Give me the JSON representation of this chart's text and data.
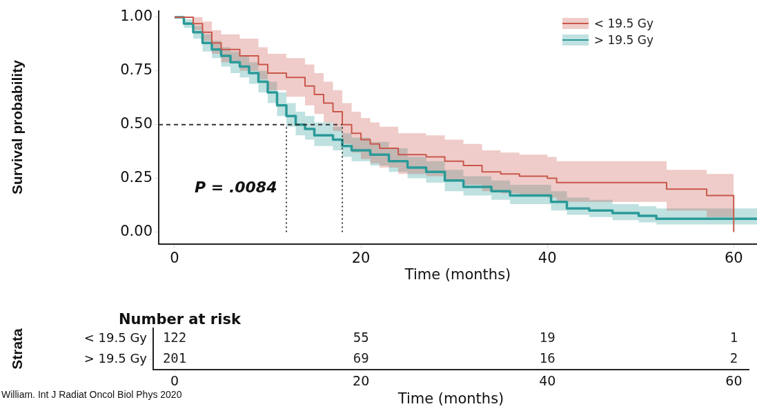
{
  "chart_data": [
    {
      "type": "step",
      "xlabel": "Time (months)",
      "ylabel": "Survival probability",
      "xlim": [
        -1.7,
        62.5
      ],
      "ylim": [
        -0.055,
        1.03
      ],
      "xticks": [
        0,
        20,
        40,
        60
      ],
      "yticks": [
        {
          "value": 0,
          "label": "0.00"
        },
        {
          "value": 0.25,
          "label": "0.25"
        },
        {
          "value": 0.5,
          "label": "0.50"
        },
        {
          "value": 0.75,
          "label": "0.75"
        },
        {
          "value": 1,
          "label": "1.00"
        }
      ],
      "grid": false,
      "legend": "top right",
      "line_style": "solid",
      "series": [
        {
          "name": "< 19.5 Gy",
          "color": "#c9574b",
          "x": [
            0,
            2,
            3,
            4,
            5,
            7,
            9,
            10,
            12,
            14,
            15,
            16,
            17,
            18,
            19,
            20,
            21,
            22,
            24,
            27,
            29,
            31,
            33,
            35,
            37,
            40,
            41,
            52.8,
            57.1,
            60
          ],
          "values": [
            1,
            0.97,
            0.93,
            0.88,
            0.85,
            0.82,
            0.78,
            0.74,
            0.72,
            0.68,
            0.64,
            0.6,
            0.56,
            0.5,
            0.46,
            0.43,
            0.41,
            0.39,
            0.36,
            0.35,
            0.33,
            0.31,
            0.28,
            0.27,
            0.26,
            0.25,
            0.23,
            0.2,
            0.17,
            0
          ],
          "lower": [
            1,
            0.94,
            0.89,
            0.83,
            0.79,
            0.75,
            0.71,
            0.66,
            0.63,
            0.59,
            0.55,
            0.51,
            0.47,
            0.41,
            0.37,
            0.34,
            0.32,
            0.3,
            0.27,
            0.26,
            0.24,
            0.22,
            0.19,
            0.18,
            0.17,
            0.16,
            0.14,
            0.1,
            0.07,
            0.07
          ],
          "upper": [
            1,
            1,
            0.98,
            0.94,
            0.92,
            0.9,
            0.86,
            0.83,
            0.81,
            0.78,
            0.74,
            0.7,
            0.66,
            0.6,
            0.56,
            0.53,
            0.51,
            0.49,
            0.46,
            0.45,
            0.43,
            0.41,
            0.38,
            0.37,
            0.36,
            0.35,
            0.33,
            0.29,
            0.27,
            0.27
          ]
        },
        {
          "name": "> 19.5 Gy",
          "color": "#2a9a98",
          "x": [
            0,
            1,
            2,
            3,
            4,
            5,
            6,
            7,
            8,
            9,
            10,
            11,
            12,
            13,
            14,
            15,
            17,
            18,
            19,
            21,
            23,
            25,
            27,
            29,
            31,
            34,
            36,
            40.4,
            42.1,
            44.5,
            47,
            49.8,
            51.7,
            62.5
          ],
          "values": [
            1,
            0.97,
            0.93,
            0.88,
            0.85,
            0.82,
            0.79,
            0.77,
            0.74,
            0.7,
            0.65,
            0.59,
            0.54,
            0.5,
            0.48,
            0.45,
            0.43,
            0.4,
            0.38,
            0.36,
            0.33,
            0.3,
            0.28,
            0.24,
            0.21,
            0.19,
            0.17,
            0.14,
            0.11,
            0.1,
            0.088,
            0.075,
            0.062,
            0.062
          ],
          "lower": [
            1,
            0.95,
            0.9,
            0.84,
            0.81,
            0.77,
            0.74,
            0.72,
            0.69,
            0.65,
            0.6,
            0.54,
            0.49,
            0.45,
            0.43,
            0.4,
            0.38,
            0.35,
            0.33,
            0.31,
            0.28,
            0.25,
            0.23,
            0.19,
            0.17,
            0.15,
            0.13,
            0.1,
            0.08,
            0.07,
            0.055,
            0.045,
            0.035,
            0.035
          ],
          "upper": [
            1,
            0.99,
            0.96,
            0.92,
            0.89,
            0.86,
            0.84,
            0.82,
            0.79,
            0.75,
            0.7,
            0.65,
            0.6,
            0.56,
            0.54,
            0.51,
            0.49,
            0.46,
            0.44,
            0.42,
            0.39,
            0.35,
            0.33,
            0.29,
            0.26,
            0.24,
            0.22,
            0.19,
            0.16,
            0.15,
            0.13,
            0.12,
            0.11,
            0.11
          ]
        }
      ],
      "ref_lines": [
        {
          "axis": "y",
          "value": 0.5,
          "line_style": "dashed"
        },
        {
          "axis": "x",
          "value": 12,
          "line_style": "dotted"
        },
        {
          "axis": "x",
          "value": 18,
          "line_style": "dotted"
        }
      ],
      "annotations": [
        "P = .0084"
      ]
    },
    {
      "type": "heatmap",
      "title": "Number at risk",
      "ylabel": "Strata",
      "xlabel": "Time (months)",
      "categories": [
        "0",
        "20",
        "40",
        "60"
      ],
      "y_categories": [
        "< 19.5 Gy",
        "> 19.5 Gy"
      ],
      "cells": [
        [
          122,
          55,
          19,
          1
        ],
        [
          201,
          69,
          16,
          2
        ]
      ],
      "data_labels": true,
      "annotations": [
        "William. Int J Radiat Oncol Biol Phys 2020"
      ]
    }
  ]
}
